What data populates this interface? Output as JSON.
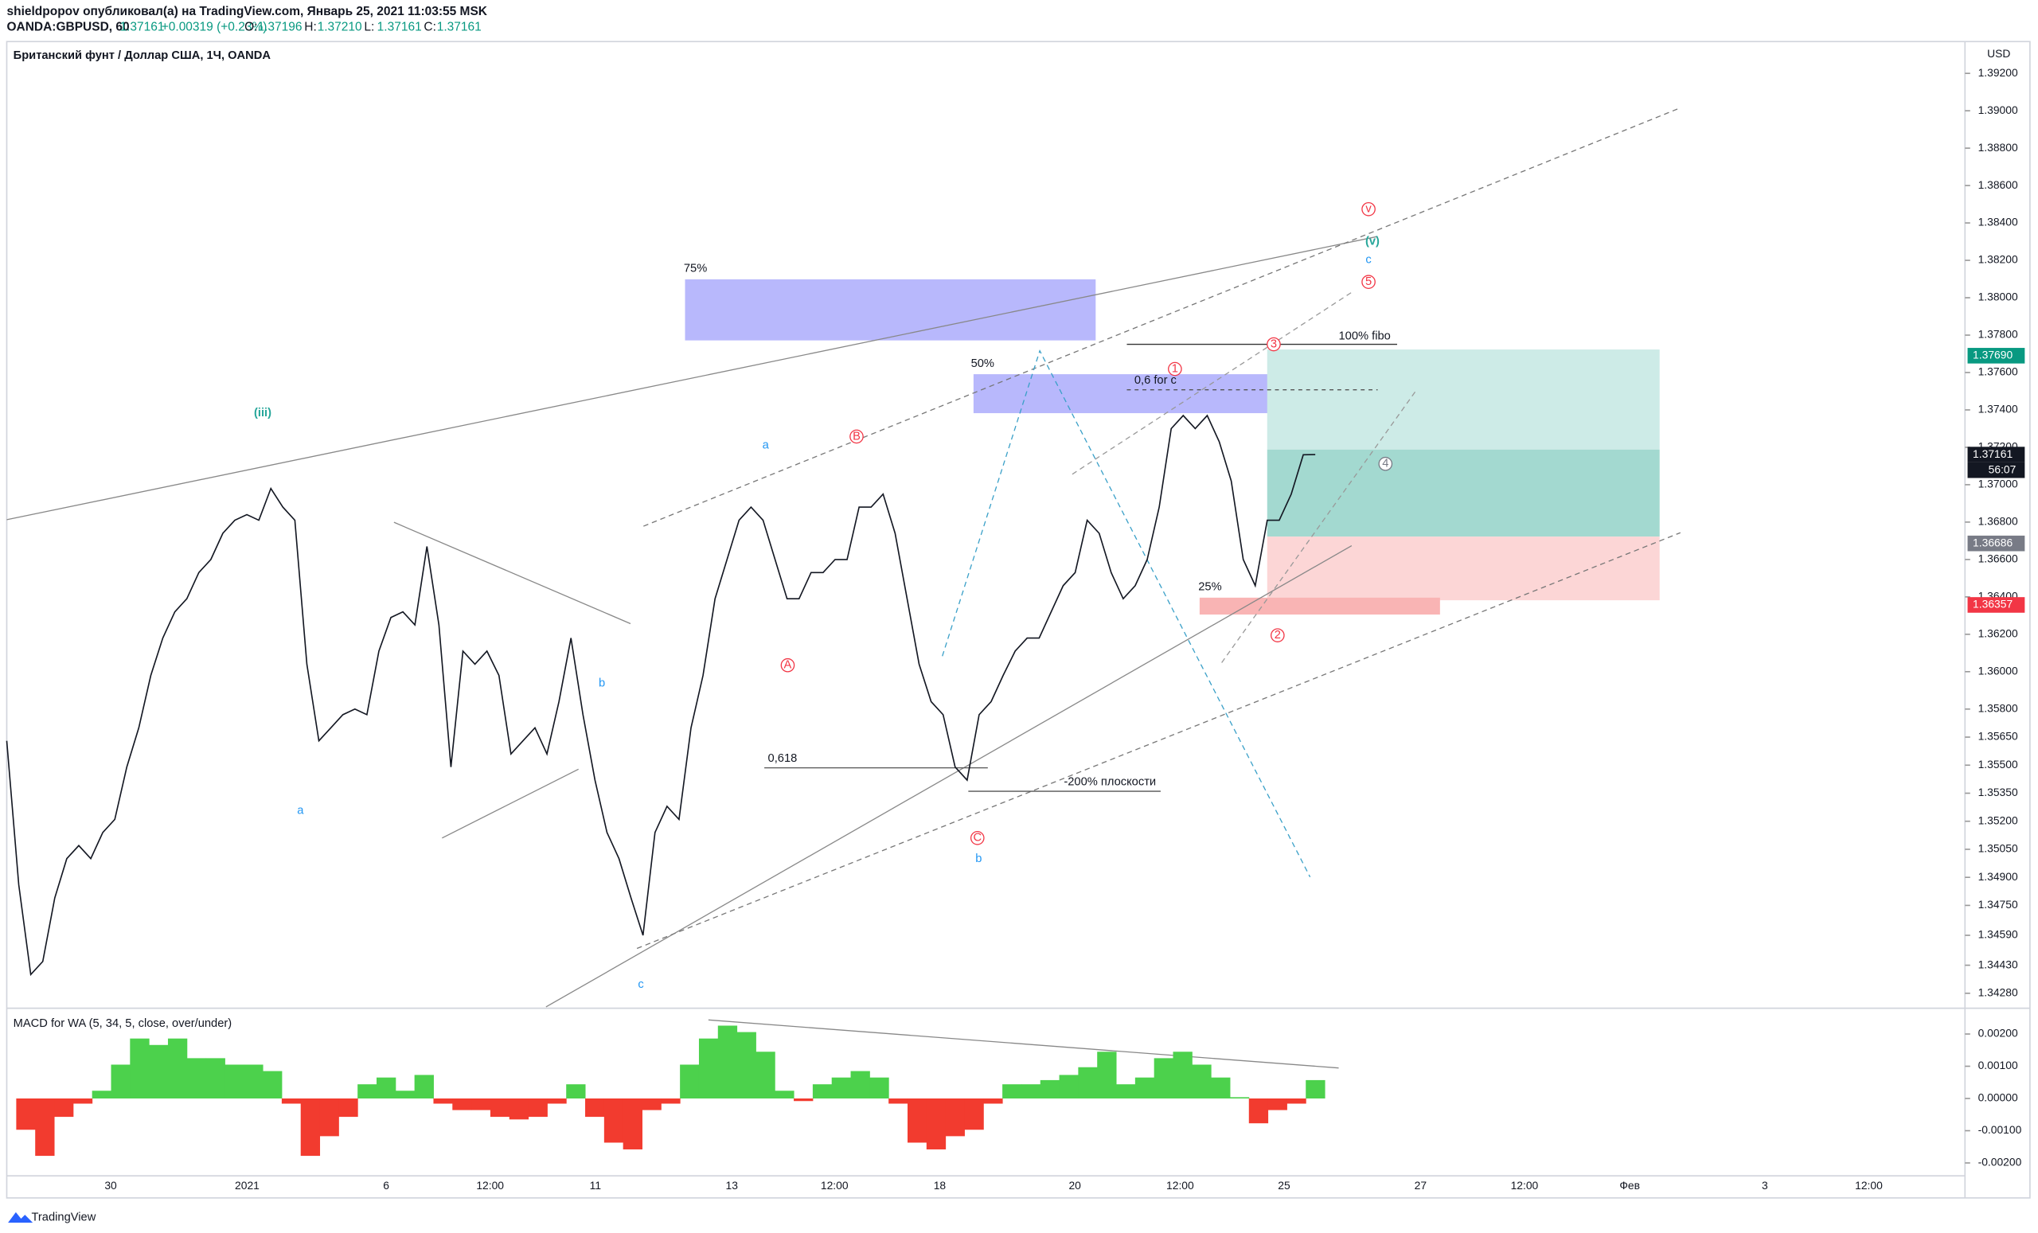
{
  "header": {
    "author_line": "shieldpopov опубликовал(а) на TradingView.com, Январь 25, 2021 11:03:55 MSK",
    "symbol": "OANDA:GBPUSD, 60",
    "last": "1.37161",
    "change": "+0.00319 (+0.23%)",
    "ohlc": [
      {
        "k": "O:",
        "v": "1.37196"
      },
      {
        "k": "H:",
        "v": "1.37210"
      },
      {
        "k": "L:",
        "v": "1.37161"
      },
      {
        "k": "C:",
        "v": "1.37161"
      }
    ]
  },
  "chart_data": [
    {
      "type": "line",
      "title": "Британский фунт / Доллар США, 1Ч, OANDA",
      "currency": "USD",
      "color": "#131722",
      "values": [
        1.3563,
        1.3486,
        1.3438,
        1.3445,
        1.3479,
        1.35,
        1.3507,
        1.35,
        1.3514,
        1.3521,
        1.3549,
        1.357,
        1.3598,
        1.3618,
        1.3632,
        1.3639,
        1.3653,
        1.366,
        1.3674,
        1.3681,
        1.3684,
        1.3681,
        1.3698,
        1.3688,
        1.3681,
        1.3604,
        1.3563,
        1.357,
        1.3577,
        1.358,
        1.3577,
        1.3611,
        1.3629,
        1.3632,
        1.3625,
        1.3667,
        1.3625,
        1.3549,
        1.3611,
        1.3604,
        1.3611,
        1.3598,
        1.3556,
        1.3563,
        1.357,
        1.3556,
        1.3584,
        1.3618,
        1.3577,
        1.3542,
        1.3514,
        1.35,
        1.3479,
        1.3459,
        1.3514,
        1.3528,
        1.3521,
        1.357,
        1.3598,
        1.3639,
        1.366,
        1.3681,
        1.3688,
        1.3681,
        1.366,
        1.3639,
        1.3639,
        1.3653,
        1.3653,
        1.366,
        1.366,
        1.3688,
        1.3688,
        1.3695,
        1.3674,
        1.3639,
        1.3604,
        1.3584,
        1.3577,
        1.3549,
        1.3542,
        1.3577,
        1.3584,
        1.3598,
        1.3611,
        1.3618,
        1.3618,
        1.3632,
        1.3646,
        1.3653,
        1.3681,
        1.3674,
        1.3653,
        1.3639,
        1.3646,
        1.366,
        1.3688,
        1.373,
        1.3737,
        1.373,
        1.3737,
        1.3723,
        1.3702,
        1.366,
        1.3646,
        1.3681,
        1.3681,
        1.3695,
        1.3716,
        1.37161
      ],
      "ylim": [
        1.342,
        1.3937
      ],
      "yticks": [
        {
          "value": 1.392,
          "label": "1.39200"
        },
        {
          "value": 1.39,
          "label": "1.39000"
        },
        {
          "value": 1.388,
          "label": "1.38800"
        },
        {
          "value": 1.386,
          "label": "1.38600"
        },
        {
          "value": 1.384,
          "label": "1.38400"
        },
        {
          "value": 1.382,
          "label": "1.38200"
        },
        {
          "value": 1.38,
          "label": "1.38000"
        },
        {
          "value": 1.378,
          "label": "1.37800"
        },
        {
          "value": 1.376,
          "label": "1.37600"
        },
        {
          "value": 1.374,
          "label": "1.37400"
        },
        {
          "value": 1.372,
          "label": "1.37200"
        },
        {
          "value": 1.37,
          "label": "1.37000"
        },
        {
          "value": 1.368,
          "label": "1.36800"
        },
        {
          "value": 1.366,
          "label": "1.36600"
        },
        {
          "value": 1.364,
          "label": "1.36400"
        },
        {
          "value": 1.362,
          "label": "1.36200"
        },
        {
          "value": 1.36,
          "label": "1.36000"
        },
        {
          "value": 1.358,
          "label": "1.35800"
        },
        {
          "value": 1.3565,
          "label": "1.35650"
        },
        {
          "value": 1.355,
          "label": "1.35500"
        },
        {
          "value": 1.3535,
          "label": "1.35350"
        },
        {
          "value": 1.352,
          "label": "1.35200"
        },
        {
          "value": 1.3505,
          "label": "1.35050"
        },
        {
          "value": 1.349,
          "label": "1.34900"
        },
        {
          "value": 1.3475,
          "label": "1.34750"
        },
        {
          "value": 1.3459,
          "label": "1.34590"
        },
        {
          "value": 1.3443,
          "label": "1.34430"
        },
        {
          "value": 1.3428,
          "label": "1.34280"
        }
      ],
      "xtick_labels": [
        "30",
        "2021",
        "6",
        "12:00",
        "11",
        "13",
        "12:00",
        "18",
        "20",
        "12:00",
        "25",
        "27",
        "12:00",
        "Фев",
        "3",
        "12:00"
      ],
      "price_tags": [
        {
          "value": 1.3769,
          "label": "1.37690",
          "color": "#089981"
        },
        {
          "value": 1.37161,
          "label": "1.37161",
          "color": "#131722"
        },
        {
          "value": 1.36686,
          "label": "1.36686",
          "color": "#787b86"
        },
        {
          "value": 1.36357,
          "label": "1.36357",
          "color": "#f23645"
        }
      ],
      "countdown": "56:07",
      "annotations": [
        {
          "text": "(iii)",
          "color": "#26a69a"
        },
        {
          "text": "a",
          "color": "#2196f3"
        },
        {
          "text": "b",
          "color": "#2196f3"
        },
        {
          "text": "c",
          "color": "#2196f3"
        },
        {
          "text": "a",
          "color": "#2196f3"
        },
        {
          "text": "b",
          "color": "#2196f3"
        },
        {
          "text": "c",
          "color": "#2196f3"
        },
        {
          "text": "(v)",
          "color": "#26a69a"
        },
        {
          "text": "75%",
          "color": "#131722"
        },
        {
          "text": "50%",
          "color": "#131722"
        },
        {
          "text": "25%",
          "color": "#131722"
        },
        {
          "text": "0,618",
          "color": "#131722"
        },
        {
          "text": "-200% плоскости",
          "color": "#131722"
        },
        {
          "text": "100% fibo",
          "color": "#131722"
        },
        {
          "text": "0,6 for c",
          "color": "#131722"
        },
        {
          "text": "v",
          "color": "#f23645",
          "circled": true
        },
        {
          "text": "5",
          "color": "#f23645",
          "circled": true
        },
        {
          "text": "3",
          "color": "#f23645",
          "circled": true
        },
        {
          "text": "1",
          "color": "#f23645",
          "circled": true
        },
        {
          "text": "B",
          "color": "#f23645",
          "circled": true
        },
        {
          "text": "A",
          "color": "#f23645",
          "circled": true
        },
        {
          "text": "C",
          "color": "#f23645",
          "circled": true
        },
        {
          "text": "4",
          "color": "#787b86",
          "circled": true
        },
        {
          "text": "2",
          "color": "#f23645",
          "circled": true
        }
      ]
    },
    {
      "type": "bar",
      "title": "MACD for WA (5, 34, 5, close, over/under)",
      "up_color": "#4cd14c",
      "down_color": "#f23b2f",
      "values": [
        0,
        -0.00097,
        -0.00178,
        -0.00057,
        -0.00016,
        0.00024,
        0.00105,
        0.00186,
        0.00166,
        0.00186,
        0.00125,
        0.00125,
        0.00105,
        0.00105,
        0.00085,
        -0.00016,
        -0.00178,
        -0.00117,
        -0.00057,
        0.00044,
        0.00065,
        0.00024,
        0.00073,
        -0.00016,
        -0.00036,
        -0.00036,
        -0.00057,
        -0.00065,
        -0.00057,
        -0.00016,
        0.00044,
        -0.00057,
        -0.00137,
        -0.00158,
        -0.00036,
        -0.00016,
        0.00105,
        0.00186,
        0.00226,
        0.00206,
        0.00145,
        0.00024,
        -8e-05,
        0.00044,
        0.00065,
        0.00085,
        0.00065,
        -0.00016,
        -0.00137,
        -0.00158,
        -0.00117,
        -0.00097,
        -0.00016,
        0.00044,
        0.00044,
        0.00057,
        0.00073,
        0.00097,
        0.00145,
        0.00044,
        0.00065,
        0.00125,
        0.00145,
        0.00105,
        0.00065,
        4e-05,
        -0.00077,
        -0.00036,
        -0.00016,
        0.00057
      ],
      "ylim": [
        -0.0024,
        0.0028
      ],
      "yticks": [
        {
          "value": 0.002,
          "label": "0.00200"
        },
        {
          "value": 0.001,
          "label": "0.00100"
        },
        {
          "value": 0,
          "label": "0.00000"
        },
        {
          "value": -0.001,
          "label": "-0.00100"
        },
        {
          "value": -0.002,
          "label": "-0.00200"
        }
      ]
    }
  ],
  "footer": "TradingView"
}
